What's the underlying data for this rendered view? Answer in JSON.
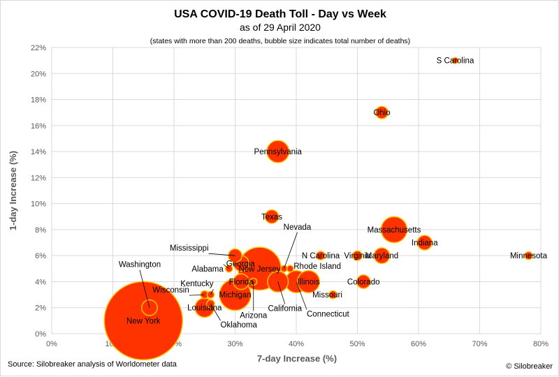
{
  "chart_data": {
    "type": "scatter",
    "subtype": "bubble",
    "title": "USA COVID-19 Death Toll - Day vs Week",
    "subtitle": "as of 29 April 2020",
    "note": "(states with more than 200 deaths, bubble size indicates total number of deaths)",
    "xlabel": "7-day Increase (%)",
    "ylabel": "1-day Increase (%)",
    "xlim": [
      0,
      80
    ],
    "ylim": [
      0,
      22
    ],
    "x_ticks": [
      0,
      10,
      20,
      30,
      40,
      50,
      60,
      70,
      80
    ],
    "x_tick_labels": [
      "0%",
      "10%",
      "20%",
      "30%",
      "40%",
      "50%",
      "60%",
      "70%",
      "80%"
    ],
    "y_ticks": [
      0,
      2,
      4,
      6,
      8,
      10,
      12,
      14,
      16,
      18,
      20,
      22
    ],
    "y_tick_labels": [
      "0%",
      "2%",
      "4%",
      "6%",
      "8%",
      "10%",
      "12%",
      "14%",
      "16%",
      "18%",
      "20%",
      "22%"
    ],
    "grid": true,
    "colors": {
      "bubble_fill": "#ff3300",
      "bubble_edge": "#ffc000",
      "grid": "#d9d9d9",
      "axis_text": "#595959"
    },
    "points": [
      {
        "label": "New York",
        "x": 15,
        "y": 1,
        "size": 1.0
      },
      {
        "label": "Washington",
        "x": 16,
        "y": 2,
        "size": 0.04
      },
      {
        "label": "Louisiana",
        "x": 25,
        "y": 2,
        "size": 0.06
      },
      {
        "label": "Oklahoma",
        "x": 26,
        "y": 2.3,
        "size": 0.01
      },
      {
        "label": "Wisconsin",
        "x": 25,
        "y": 3,
        "size": 0.01
      },
      {
        "label": "Kentucky",
        "x": 26,
        "y": 3,
        "size": 0.008
      },
      {
        "label": "Michigan",
        "x": 30,
        "y": 3,
        "size": 0.16
      },
      {
        "label": "Alabama",
        "x": 29,
        "y": 5,
        "size": 0.008
      },
      {
        "label": "Mississippi",
        "x": 30,
        "y": 6,
        "size": 0.03
      },
      {
        "label": "Georgia",
        "x": 31,
        "y": 5.4,
        "size": 0.04
      },
      {
        "label": "Florida",
        "x": 31,
        "y": 4,
        "size": 0.04
      },
      {
        "label": "Arizona",
        "x": 33,
        "y": 4,
        "size": 0.008
      },
      {
        "label": "New Jersey",
        "x": 34,
        "y": 5,
        "size": 0.3
      },
      {
        "label": "California",
        "x": 37,
        "y": 4,
        "size": 0.07
      },
      {
        "label": "Nevada",
        "x": 38,
        "y": 5,
        "size": 0.007
      },
      {
        "label": "Rhode Island",
        "x": 39,
        "y": 5,
        "size": 0.007
      },
      {
        "label": "Connecticut",
        "x": 40,
        "y": 4,
        "size": 0.08
      },
      {
        "label": "Illinois",
        "x": 42,
        "y": 4,
        "size": 0.08
      },
      {
        "label": "Missouri",
        "x": 46,
        "y": 3,
        "size": 0.01
      },
      {
        "label": "Texas",
        "x": 36,
        "y": 9,
        "size": 0.03
      },
      {
        "label": "Pennsylvania",
        "x": 37,
        "y": 14,
        "size": 0.08
      },
      {
        "label": "N Carolina",
        "x": 44,
        "y": 6,
        "size": 0.012
      },
      {
        "label": "Virginia",
        "x": 50,
        "y": 6,
        "size": 0.015
      },
      {
        "label": "Maryland",
        "x": 54,
        "y": 6,
        "size": 0.04
      },
      {
        "label": "Colorado",
        "x": 51,
        "y": 4,
        "size": 0.03
      },
      {
        "label": "Ohio",
        "x": 54,
        "y": 17,
        "size": 0.025
      },
      {
        "label": "Massachusetts",
        "x": 56,
        "y": 8,
        "size": 0.11
      },
      {
        "label": "Indiana",
        "x": 61,
        "y": 7,
        "size": 0.035
      },
      {
        "label": "S Carolina",
        "x": 66,
        "y": 21,
        "size": 0.006
      },
      {
        "label": "Minnesota",
        "x": 78,
        "y": 6,
        "size": 0.01
      }
    ]
  },
  "footer": {
    "source": "Source: Silobreaker analysis of Worldometer data",
    "credit": "© Silobreaker"
  }
}
